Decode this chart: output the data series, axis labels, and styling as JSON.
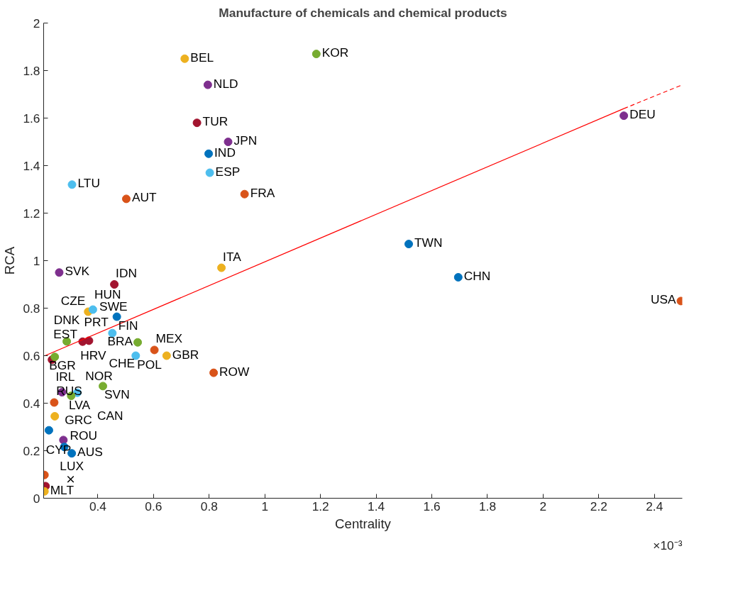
{
  "chart_data": {
    "type": "scatter",
    "title": "Manufacture of chemicals and chemical products",
    "xlabel": "Centrality",
    "ylabel": "RCA",
    "xlim": [
      0.205,
      2.5
    ],
    "ylim": [
      0,
      2
    ],
    "xticks": [
      0.4,
      0.6,
      0.8,
      1,
      1.2,
      1.4,
      1.6,
      1.8,
      2,
      2.2,
      2.4
    ],
    "yticks": [
      0,
      0.2,
      0.4,
      0.6,
      0.8,
      1,
      1.2,
      1.4,
      1.6,
      1.8,
      2
    ],
    "grid": false,
    "series": [
      {
        "marker": "circle",
        "x": [
          0.712,
          1.185,
          0.795,
          0.756,
          0.868,
          0.798,
          0.802,
          0.307,
          0.502,
          0.927,
          2.29,
          1.517,
          1.695,
          2.495,
          0.844,
          0.261,
          0.459,
          0.365,
          0.382,
          0.468,
          0.452,
          0.288,
          0.345,
          0.368,
          0.235,
          0.245,
          0.543,
          0.536,
          0.603,
          0.647,
          0.816,
          0.418,
          0.271,
          0.326,
          0.304,
          0.243,
          0.245,
          0.224,
          0.276,
          0.279,
          0.306,
          0.208,
          0.212,
          0.208
        ],
        "values": [
          1.85,
          1.87,
          1.74,
          1.58,
          1.5,
          1.45,
          1.37,
          1.32,
          1.26,
          1.28,
          1.61,
          1.07,
          0.93,
          0.83,
          0.97,
          0.95,
          0.9,
          0.785,
          0.794,
          0.764,
          0.695,
          0.66,
          0.659,
          0.663,
          0.583,
          0.595,
          0.656,
          0.6,
          0.624,
          0.6,
          0.528,
          0.472,
          0.446,
          0.444,
          0.431,
          0.403,
          0.345,
          0.286,
          0.245,
          0.216,
          0.189,
          0.098,
          0.051,
          0.029
        ],
        "colors": [
          "#edb120",
          "#77ac30",
          "#7e2f8e",
          "#a2142f",
          "#7e2f8e",
          "#0072bd",
          "#4dbeee",
          "#4dbeee",
          "#d95319",
          "#d95319",
          "#7e2f8e",
          "#0072bd",
          "#0072bd",
          "#d95319",
          "#edb120",
          "#7e2f8e",
          "#a2142f",
          "#edb120",
          "#4dbeee",
          "#0072bd",
          "#4dbeee",
          "#77ac30",
          "#a2142f",
          "#a2142f",
          "#a2142f",
          "#77ac30",
          "#77ac30",
          "#4dbeee",
          "#d95319",
          "#edb120",
          "#d95319",
          "#77ac30",
          "#7e2f8e",
          "#4dbeee",
          "#77ac30",
          "#d95319",
          "#edb120",
          "#0072bd",
          "#7e2f8e",
          "#0072bd",
          "#0072bd",
          "#d95319",
          "#a2142f",
          "#edb120"
        ]
      },
      {
        "marker": "cross",
        "color": "#000000",
        "x": [
          0.302
        ],
        "values": [
          0.08
        ]
      },
      {
        "type": "line",
        "marker": "none",
        "line_style": "solid",
        "color": "#ff0000",
        "x": [
          0.21,
          2.29
        ],
        "values": [
          0.6,
          1.64
        ]
      },
      {
        "type": "line",
        "marker": "none",
        "line_style": "dashed",
        "color": "#ff0000",
        "x": [
          2.29,
          2.5
        ],
        "values": [
          1.64,
          1.74
        ]
      }
    ],
    "annotations": [
      {
        "text": "BEL",
        "x": 0.712,
        "y": 1.85
      },
      {
        "text": "KOR",
        "x": 1.185,
        "y": 1.87
      },
      {
        "text": "NLD",
        "x": 0.795,
        "y": 1.74
      },
      {
        "text": "TUR",
        "x": 0.756,
        "y": 1.58
      },
      {
        "text": "JPN",
        "x": 0.868,
        "y": 1.5
      },
      {
        "text": "IND",
        "x": 0.798,
        "y": 1.45
      },
      {
        "text": "ESP",
        "x": 0.802,
        "y": 1.37
      },
      {
        "text": "LTU",
        "x": 0.307,
        "y": 1.32
      },
      {
        "text": "AUT",
        "x": 0.502,
        "y": 1.26
      },
      {
        "text": "FRA",
        "x": 0.927,
        "y": 1.28
      },
      {
        "text": "DEU",
        "x": 2.29,
        "y": 1.61
      },
      {
        "text": "TWN",
        "x": 1.517,
        "y": 1.07
      },
      {
        "text": "CHN",
        "x": 1.695,
        "y": 0.93
      },
      {
        "text": "USA",
        "x": 2.495,
        "y": 0.83
      },
      {
        "text": "ITA",
        "x": 0.844,
        "y": 0.97
      },
      {
        "text": "SVK",
        "x": 0.261,
        "y": 0.95
      },
      {
        "text": "IDN",
        "x": 0.459,
        "y": 0.9
      },
      {
        "text": "CZE",
        "x": 0.365,
        "y": 0.785
      },
      {
        "text": "HUN",
        "x": 0.382,
        "y": 0.794
      },
      {
        "text": "FIN",
        "x": 0.468,
        "y": 0.764
      },
      {
        "text": "SWE",
        "x": 0.452,
        "y": 0.695
      },
      {
        "text": "DNK",
        "x": 0.288,
        "y": 0.66
      },
      {
        "text": "PRT",
        "x": 0.345,
        "y": 0.659
      },
      {
        "text": "CHE",
        "x": 0.368,
        "y": 0.663
      },
      {
        "text": "EST",
        "x": 0.235,
        "y": 0.583
      },
      {
        "text": "HRV",
        "x": 0.245,
        "y": 0.595
      },
      {
        "text": "BRA",
        "x": 0.543,
        "y": 0.656
      },
      {
        "text": "POL",
        "x": 0.536,
        "y": 0.6
      },
      {
        "text": "MEX",
        "x": 0.603,
        "y": 0.624
      },
      {
        "text": "GBR",
        "x": 0.647,
        "y": 0.6
      },
      {
        "text": "ROW",
        "x": 0.816,
        "y": 0.528
      },
      {
        "text": "SVN",
        "x": 0.418,
        "y": 0.472
      },
      {
        "text": "BGR",
        "x": 0.271,
        "y": 0.446
      },
      {
        "text": "CAN",
        "x": 0.326,
        "y": 0.444
      },
      {
        "text": "NOR",
        "x": 0.304,
        "y": 0.431
      },
      {
        "text": "IRL",
        "x": 0.243,
        "y": 0.403
      },
      {
        "text": "RUS",
        "x": 0.245,
        "y": 0.345
      },
      {
        "text": "LVA",
        "x": 0.224,
        "y": 0.286
      },
      {
        "text": "GRC",
        "x": 0.276,
        "y": 0.245
      },
      {
        "text": "ROU",
        "x": 0.279,
        "y": 0.216
      },
      {
        "text": "AUS",
        "x": 0.306,
        "y": 0.189
      },
      {
        "text": "CYP",
        "x": 0.208,
        "y": 0.098
      },
      {
        "text": "LUX",
        "x": 0.212,
        "y": 0.051
      },
      {
        "text": "MLT",
        "x": 0.208,
        "y": 0.029
      },
      "×10⁻³"
    ]
  }
}
